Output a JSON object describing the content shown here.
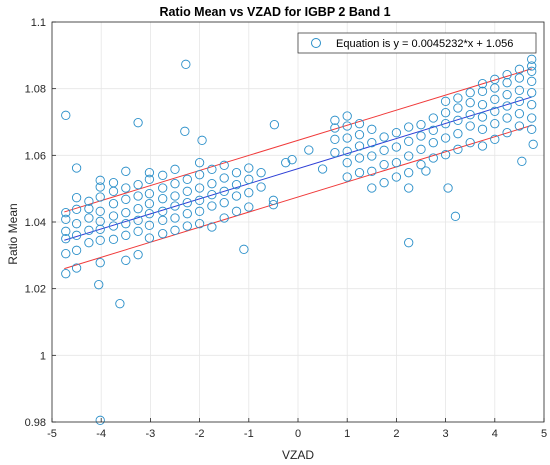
{
  "chart_data": {
    "type": "scatter",
    "title": "Ratio Mean vs VZAD for IGBP 2 Band 1",
    "xlabel": "VZAD",
    "ylabel": "Ratio Mean",
    "xlim": [
      -5,
      5
    ],
    "ylim": [
      0.98,
      1.1
    ],
    "xticks": [
      -5,
      -4,
      -3,
      -2,
      -1,
      0,
      1,
      2,
      3,
      4,
      5
    ],
    "yticks": [
      0.98,
      1,
      1.02,
      1.04,
      1.06,
      1.08,
      1.1
    ],
    "grid": true,
    "legend": {
      "position": "top-right",
      "entries": [
        "Equation is y = 0.0045232*x + 1.056"
      ]
    },
    "colors": {
      "points": "#2a8fc9",
      "fit_line": "#2d3fd6",
      "bound_lines": "#f03a3a",
      "grid": "#e6e6e6",
      "axes": "#262626"
    },
    "fit": {
      "slope": 0.0045232,
      "intercept": 1.056,
      "bound_offset": 0.0085
    },
    "series": [
      {
        "points": [
          [
            -4.72,
            1.072
          ],
          [
            -4.02,
            0.9805
          ],
          [
            -3.62,
            1.0155
          ],
          [
            -4.05,
            1.0212
          ],
          [
            -3.25,
            1.0698
          ],
          [
            -2.28,
            1.0873
          ],
          [
            -2.3,
            1.0672
          ],
          [
            -1.95,
            1.0645
          ],
          [
            -1.1,
            1.0318
          ],
          [
            -0.48,
            1.0692
          ],
          [
            -0.12,
            1.0587
          ],
          [
            0.22,
            1.0616
          ],
          [
            0.5,
            1.0559
          ],
          [
            2.25,
            1.0338
          ],
          [
            3.2,
            1.0417
          ],
          [
            2.6,
            1.0553
          ],
          [
            3.05,
            1.0502
          ],
          [
            4.55,
            1.0582
          ],
          [
            4.75,
            1.0888
          ],
          [
            4.78,
            1.0633
          ],
          [
            -4.72,
            1.0245
          ],
          [
            -4.72,
            1.0305
          ],
          [
            -4.72,
            1.035
          ],
          [
            -4.72,
            1.0372
          ],
          [
            -4.72,
            1.0408
          ],
          [
            -4.72,
            1.0428
          ],
          [
            -4.5,
            1.0262
          ],
          [
            -4.5,
            1.0315
          ],
          [
            -4.5,
            1.036
          ],
          [
            -4.5,
            1.0395
          ],
          [
            -4.5,
            1.0438
          ],
          [
            -4.5,
            1.0473
          ],
          [
            -4.5,
            1.0562
          ],
          [
            -4.25,
            1.0338
          ],
          [
            -4.25,
            1.0375
          ],
          [
            -4.25,
            1.0412
          ],
          [
            -4.25,
            1.044
          ],
          [
            -4.25,
            1.0462
          ],
          [
            -4.02,
            1.0278
          ],
          [
            -4.02,
            1.0345
          ],
          [
            -4.02,
            1.0378
          ],
          [
            -4.02,
            1.0402
          ],
          [
            -4.02,
            1.0432
          ],
          [
            -4.02,
            1.0475
          ],
          [
            -4.02,
            1.0505
          ],
          [
            -4.02,
            1.0525
          ],
          [
            -3.75,
            1.0348
          ],
          [
            -3.75,
            1.0388
          ],
          [
            -3.75,
            1.0418
          ],
          [
            -3.75,
            1.0455
          ],
          [
            -3.75,
            1.0492
          ],
          [
            -3.75,
            1.0518
          ],
          [
            -3.5,
            1.0285
          ],
          [
            -3.5,
            1.036
          ],
          [
            -3.5,
            1.0395
          ],
          [
            -3.5,
            1.0428
          ],
          [
            -3.5,
            1.0468
          ],
          [
            -3.5,
            1.0502
          ],
          [
            -3.5,
            1.0552
          ],
          [
            -3.25,
            1.0302
          ],
          [
            -3.25,
            1.0372
          ],
          [
            -3.25,
            1.0405
          ],
          [
            -3.25,
            1.044
          ],
          [
            -3.25,
            1.0478
          ],
          [
            -3.25,
            1.0512
          ],
          [
            -3.02,
            1.0352
          ],
          [
            -3.02,
            1.039
          ],
          [
            -3.02,
            1.0425
          ],
          [
            -3.02,
            1.0455
          ],
          [
            -3.02,
            1.0485
          ],
          [
            -3.02,
            1.0528
          ],
          [
            -3.02,
            1.0548
          ],
          [
            -2.75,
            1.0365
          ],
          [
            -2.75,
            1.0405
          ],
          [
            -2.75,
            1.0432
          ],
          [
            -2.75,
            1.047
          ],
          [
            -2.75,
            1.0502
          ],
          [
            -2.75,
            1.054
          ],
          [
            -2.5,
            1.0375
          ],
          [
            -2.5,
            1.0412
          ],
          [
            -2.5,
            1.0448
          ],
          [
            -2.5,
            1.0478
          ],
          [
            -2.5,
            1.0515
          ],
          [
            -2.5,
            1.0558
          ],
          [
            -2.25,
            1.0388
          ],
          [
            -2.25,
            1.0425
          ],
          [
            -2.25,
            1.0458
          ],
          [
            -2.25,
            1.0492
          ],
          [
            -2.25,
            1.0528
          ],
          [
            -2.0,
            1.0395
          ],
          [
            -2.0,
            1.0432
          ],
          [
            -2.0,
            1.0465
          ],
          [
            -2.0,
            1.0502
          ],
          [
            -2.0,
            1.0542
          ],
          [
            -2.0,
            1.0578
          ],
          [
            -1.75,
            1.0385
          ],
          [
            -1.75,
            1.0448
          ],
          [
            -1.75,
            1.0482
          ],
          [
            -1.75,
            1.0515
          ],
          [
            -1.75,
            1.0558
          ],
          [
            -1.5,
            1.0412
          ],
          [
            -1.5,
            1.0458
          ],
          [
            -1.5,
            1.0492
          ],
          [
            -1.5,
            1.0532
          ],
          [
            -1.5,
            1.057
          ],
          [
            -1.25,
            1.0432
          ],
          [
            -1.25,
            1.0478
          ],
          [
            -1.25,
            1.0512
          ],
          [
            -1.25,
            1.0548
          ],
          [
            -1.0,
            1.0445
          ],
          [
            -1.0,
            1.0488
          ],
          [
            -1.0,
            1.0528
          ],
          [
            -1.0,
            1.0562
          ],
          [
            -0.75,
            1.0505
          ],
          [
            -0.75,
            1.0548
          ],
          [
            -0.5,
            1.0452
          ],
          [
            -0.5,
            1.0465
          ],
          [
            -0.25,
            1.0578
          ],
          [
            0.75,
            1.0608
          ],
          [
            0.75,
            1.0648
          ],
          [
            0.75,
            1.0682
          ],
          [
            0.75,
            1.0705
          ],
          [
            1.0,
            1.0535
          ],
          [
            1.0,
            1.0578
          ],
          [
            1.0,
            1.0612
          ],
          [
            1.0,
            1.0652
          ],
          [
            1.0,
            1.0688
          ],
          [
            1.0,
            1.0718
          ],
          [
            1.25,
            1.0548
          ],
          [
            1.25,
            1.0592
          ],
          [
            1.25,
            1.0628
          ],
          [
            1.25,
            1.0662
          ],
          [
            1.25,
            1.0695
          ],
          [
            1.5,
            1.0502
          ],
          [
            1.5,
            1.0552
          ],
          [
            1.5,
            1.0598
          ],
          [
            1.5,
            1.0638
          ],
          [
            1.5,
            1.0678
          ],
          [
            1.75,
            1.0518
          ],
          [
            1.75,
            1.0572
          ],
          [
            1.75,
            1.0615
          ],
          [
            1.75,
            1.0655
          ],
          [
            2.0,
            1.0535
          ],
          [
            2.0,
            1.0578
          ],
          [
            2.0,
            1.0625
          ],
          [
            2.0,
            1.0668
          ],
          [
            2.25,
            1.0502
          ],
          [
            2.25,
            1.0548
          ],
          [
            2.25,
            1.0598
          ],
          [
            2.25,
            1.0642
          ],
          [
            2.25,
            1.0685
          ],
          [
            2.5,
            1.0572
          ],
          [
            2.5,
            1.0618
          ],
          [
            2.5,
            1.0658
          ],
          [
            2.5,
            1.0692
          ],
          [
            2.75,
            1.0592
          ],
          [
            2.75,
            1.0638
          ],
          [
            2.75,
            1.0675
          ],
          [
            2.75,
            1.0712
          ],
          [
            3.0,
            1.0602
          ],
          [
            3.0,
            1.0652
          ],
          [
            3.0,
            1.0695
          ],
          [
            3.0,
            1.0728
          ],
          [
            3.0,
            1.0762
          ],
          [
            3.25,
            1.0618
          ],
          [
            3.25,
            1.0665
          ],
          [
            3.25,
            1.0705
          ],
          [
            3.25,
            1.0742
          ],
          [
            3.25,
            1.0772
          ],
          [
            3.5,
            1.0638
          ],
          [
            3.5,
            1.0688
          ],
          [
            3.5,
            1.0722
          ],
          [
            3.5,
            1.0758
          ],
          [
            3.5,
            1.0788
          ],
          [
            3.75,
            1.0628
          ],
          [
            3.75,
            1.0678
          ],
          [
            3.75,
            1.0715
          ],
          [
            3.75,
            1.0752
          ],
          [
            3.75,
            1.0792
          ],
          [
            3.75,
            1.0815
          ],
          [
            4.0,
            1.0648
          ],
          [
            4.0,
            1.0695
          ],
          [
            4.0,
            1.0732
          ],
          [
            4.0,
            1.0768
          ],
          [
            4.0,
            1.0802
          ],
          [
            4.0,
            1.0828
          ],
          [
            4.25,
            1.0668
          ],
          [
            4.25,
            1.0712
          ],
          [
            4.25,
            1.0748
          ],
          [
            4.25,
            1.0782
          ],
          [
            4.25,
            1.0818
          ],
          [
            4.25,
            1.0842
          ],
          [
            4.5,
            1.0688
          ],
          [
            4.5,
            1.0725
          ],
          [
            4.5,
            1.0762
          ],
          [
            4.5,
            1.0795
          ],
          [
            4.5,
            1.0832
          ],
          [
            4.5,
            1.0858
          ],
          [
            4.75,
            1.0678
          ],
          [
            4.75,
            1.0712
          ],
          [
            4.75,
            1.0752
          ],
          [
            4.75,
            1.0788
          ],
          [
            4.75,
            1.0822
          ],
          [
            4.75,
            1.0852
          ],
          [
            4.75,
            1.0868
          ]
        ]
      }
    ]
  }
}
